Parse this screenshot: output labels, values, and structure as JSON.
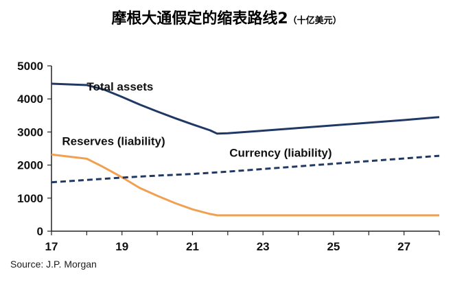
{
  "title": "摩根大通假定的缩表路线2",
  "title_unit": "（十亿美元）",
  "source": "Source: J.P. Morgan",
  "chart_data": {
    "type": "line",
    "title": "摩根大通假定的缩表路线2",
    "units": "（十亿美元）",
    "xlim": [
      17,
      28
    ],
    "ylim": [
      0,
      5000
    ],
    "x_ticks": [
      17,
      19,
      21,
      23,
      25,
      27
    ],
    "y_ticks": [
      0,
      1000,
      2000,
      3000,
      4000,
      5000
    ],
    "grid": false,
    "legend": "none (series labels placed inline)",
    "series": [
      {
        "name": "Total assets",
        "color": "#1f3864",
        "style": "solid",
        "points": [
          [
            17,
            4460
          ],
          [
            18,
            4420
          ],
          [
            18.5,
            4280
          ],
          [
            19,
            4060
          ],
          [
            19.5,
            3830
          ],
          [
            20,
            3620
          ],
          [
            20.5,
            3420
          ],
          [
            21,
            3230
          ],
          [
            21.5,
            3050
          ],
          [
            21.7,
            2950
          ],
          [
            22,
            2960
          ],
          [
            23,
            3040
          ],
          [
            24,
            3120
          ],
          [
            25,
            3200
          ],
          [
            26,
            3280
          ],
          [
            27,
            3360
          ],
          [
            28,
            3450
          ]
        ]
      },
      {
        "name": "Reserves (liability)",
        "color": "#f0a050",
        "style": "solid",
        "points": [
          [
            17,
            2320
          ],
          [
            18,
            2190
          ],
          [
            18.4,
            1980
          ],
          [
            19,
            1630
          ],
          [
            19.5,
            1310
          ],
          [
            20,
            1070
          ],
          [
            20.5,
            850
          ],
          [
            21,
            660
          ],
          [
            21.5,
            520
          ],
          [
            21.7,
            480
          ],
          [
            22,
            480
          ],
          [
            24,
            480
          ],
          [
            26,
            480
          ],
          [
            28,
            480
          ]
        ]
      },
      {
        "name": "Currency (liability)",
        "color": "#1f3864",
        "style": "dashed",
        "points": [
          [
            17,
            1480
          ],
          [
            18,
            1550
          ],
          [
            19,
            1620
          ],
          [
            20,
            1680
          ],
          [
            21,
            1730
          ],
          [
            22,
            1800
          ],
          [
            23,
            1880
          ],
          [
            24,
            1960
          ],
          [
            25,
            2040
          ],
          [
            26,
            2120
          ],
          [
            27,
            2200
          ],
          [
            28,
            2280
          ]
        ]
      }
    ]
  }
}
